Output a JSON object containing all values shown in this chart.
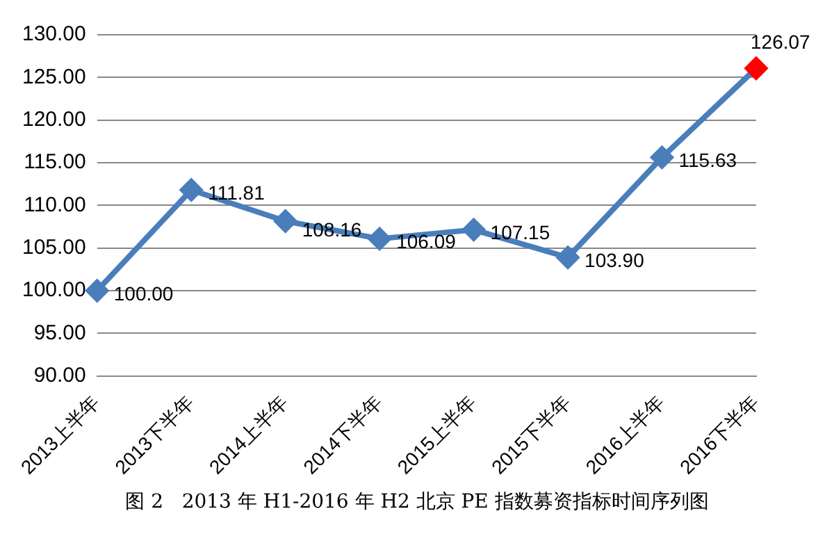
{
  "chart_data": {
    "type": "line",
    "categories": [
      "2013上半年",
      "2013下半年",
      "2014上半年",
      "2014下半年",
      "2015上半年",
      "2015下半年",
      "2016上半年",
      "2016下半年"
    ],
    "series": [
      {
        "color": "#4a7ebb",
        "colors": [
          "#4a7ebb",
          "#4a7ebb",
          "#4a7ebb",
          "#4a7ebb",
          "#4a7ebb",
          "#4a7ebb",
          "#4a7ebb",
          "#ff0000"
        ],
        "values": [
          100.0,
          111.81,
          108.16,
          106.09,
          107.15,
          103.9,
          115.63,
          126.07
        ],
        "value_labels": [
          "100.00",
          "111.81",
          "108.16",
          "106.09",
          "107.15",
          "103.90",
          "115.63",
          "126.07"
        ]
      }
    ],
    "ylim": [
      90,
      130
    ],
    "yticks": [
      {
        "value": 90,
        "label": "90.00"
      },
      {
        "value": 95,
        "label": "95.00"
      },
      {
        "value": 100,
        "label": "100.00"
      },
      {
        "value": 105,
        "label": "105.00"
      },
      {
        "value": 110,
        "label": "110.00"
      },
      {
        "value": 115,
        "label": "115.00"
      },
      {
        "value": 120,
        "label": "120.00"
      },
      {
        "value": 125,
        "label": "125.00"
      },
      {
        "value": 130,
        "label": "130.00"
      }
    ],
    "grid": "y",
    "legend": false,
    "marker": "diamond",
    "line_style": "solid",
    "annotations": [
      "图 2   2013 年 H1-2016 年 H2 北京 PE 指数募资指标时间序列图"
    ]
  }
}
